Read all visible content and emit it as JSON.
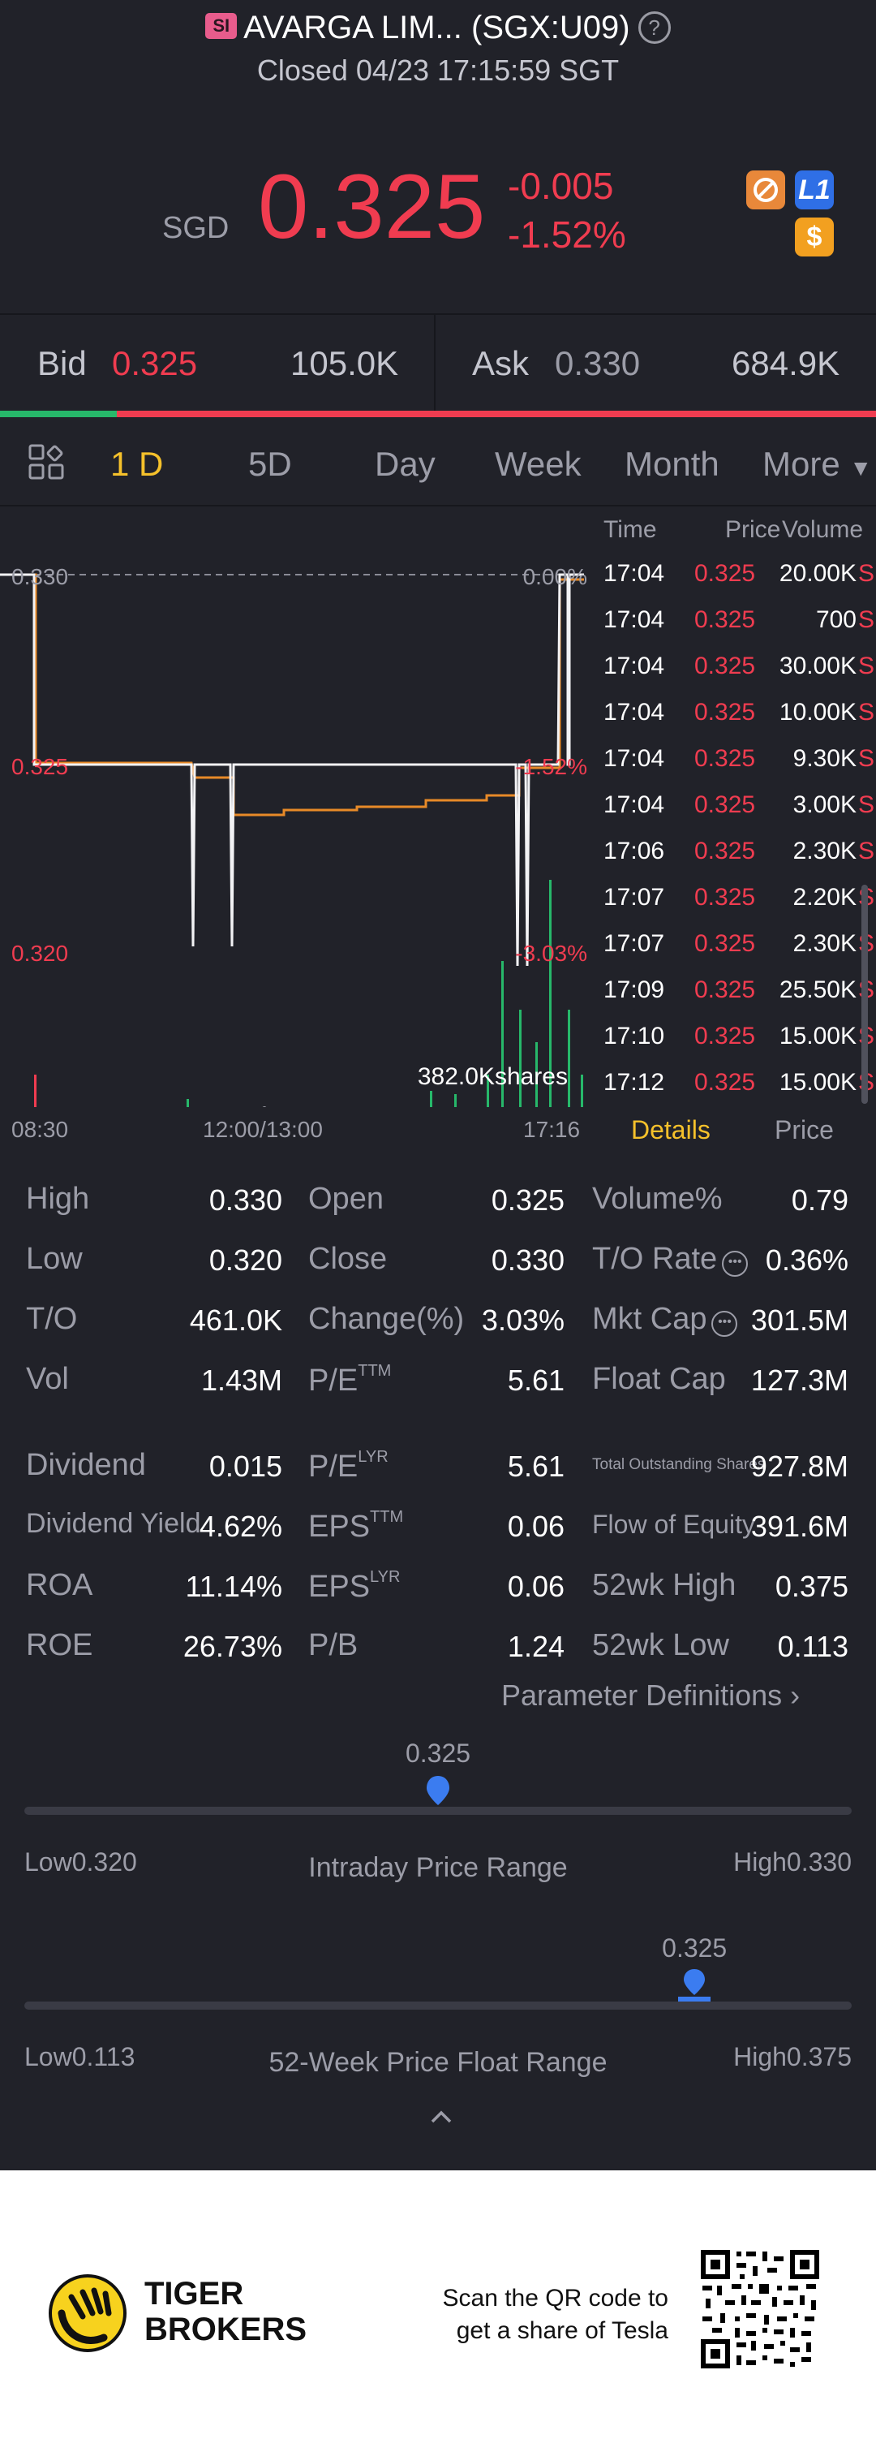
{
  "header": {
    "badge": "SI",
    "title": "AVARGA LIM... (SGX:U09)",
    "status": "Closed 04/23 17:15:59 SGT",
    "help_icon": "?"
  },
  "quote": {
    "currency": "SGD",
    "price": "0.325",
    "change": "-0.005",
    "change_pct": "-1.52%",
    "icons": [
      "badge-icon",
      "level1-icon",
      "dollar-icon"
    ],
    "l1_label": "L1",
    "dollar_label": "$"
  },
  "bidask": {
    "bid_label": "Bid",
    "bid_price": "0.325",
    "bid_size": "105.0K",
    "ask_label": "Ask",
    "ask_price": "0.330",
    "ask_size": "684.9K"
  },
  "periods": [
    "1 D",
    "5D",
    "Day",
    "Week",
    "Month",
    "More"
  ],
  "chart": {
    "y_labels": [
      "0.330",
      "0.325",
      "0.320"
    ],
    "pct_labels": [
      "0.00%",
      "-1.52%",
      "-3.03%"
    ],
    "x_labels": [
      "08:30",
      "12:00/13:00",
      "17:16"
    ],
    "volume_label": "382.0Kshares"
  },
  "trades": {
    "headers": [
      "Time",
      "Price",
      "Volume"
    ],
    "rows": [
      {
        "time": "17:04",
        "price": "0.325",
        "volume": "20.00K",
        "side": "S"
      },
      {
        "time": "17:04",
        "price": "0.325",
        "volume": "700",
        "side": "S"
      },
      {
        "time": "17:04",
        "price": "0.325",
        "volume": "30.00K",
        "side": "S"
      },
      {
        "time": "17:04",
        "price": "0.325",
        "volume": "10.00K",
        "side": "S"
      },
      {
        "time": "17:04",
        "price": "0.325",
        "volume": "9.30K",
        "side": "S"
      },
      {
        "time": "17:04",
        "price": "0.325",
        "volume": "3.00K",
        "side": "S"
      },
      {
        "time": "17:06",
        "price": "0.325",
        "volume": "2.30K",
        "side": "S"
      },
      {
        "time": "17:07",
        "price": "0.325",
        "volume": "2.20K",
        "side": "S"
      },
      {
        "time": "17:07",
        "price": "0.325",
        "volume": "2.30K",
        "side": "S"
      },
      {
        "time": "17:09",
        "price": "0.325",
        "volume": "25.50K",
        "side": "S"
      },
      {
        "time": "17:10",
        "price": "0.325",
        "volume": "15.00K",
        "side": "S"
      },
      {
        "time": "17:12",
        "price": "0.325",
        "volume": "15.00K",
        "side": "S"
      }
    ],
    "tab_details": "Details",
    "tab_price": "Price"
  },
  "stats": {
    "high_label": "High",
    "high": "0.330",
    "low_label": "Low",
    "low": "0.320",
    "to_label": "T/O",
    "to": "461.0K",
    "vol_label": "Vol",
    "vol": "1.43M",
    "open_label": "Open",
    "open": "0.325",
    "close_label": "Close",
    "close": "0.330",
    "change_label": "Change(%)",
    "change": "3.03%",
    "pe_label": "P/E",
    "pe_sup": "TTM",
    "pe": "5.61",
    "volpct_label": "Volume%",
    "volpct": "0.79",
    "torate_label": "T/O Rate",
    "torate": "0.36%",
    "mktcap_label": "Mkt Cap",
    "mktcap": "301.5M",
    "floatcap_label": "Float Cap",
    "floatcap": "127.3M",
    "dividend_label": "Dividend",
    "dividend": "0.015",
    "divyield_label": "Dividend Yield",
    "divyield": "4.62%",
    "roa_label": "ROA",
    "roa": "11.14%",
    "roe_label": "ROE",
    "roe": "26.73%",
    "pelyr_label": "P/E",
    "pelyr_sup": "LYR",
    "pelyr": "5.61",
    "epsttm_label": "EPS",
    "epsttm_sup": "TTM",
    "epsttm": "0.06",
    "epslyr_label": "EPS",
    "epslyr_sup": "LYR",
    "epslyr": "0.06",
    "pb_label": "P/B",
    "pb": "1.24",
    "totshares_label": "Total Outstanding Shares",
    "totshares": "927.8M",
    "flow_label": "Flow of Equity",
    "flow": "391.6M",
    "wkhigh_label": "52wk High",
    "wkhigh": "0.375",
    "wklow_label": "52wk Low",
    "wklow": "0.113",
    "param_link": "Parameter Definitions"
  },
  "intraday_range": {
    "current": "0.325",
    "low_label": "Low",
    "low": "0.320",
    "title": "Intraday Price Range",
    "high_label": "High",
    "high": "0.330",
    "position": 0.5
  },
  "week52_range": {
    "current": "0.325",
    "low_label": "Low",
    "low": "0.113",
    "title": "52-Week Price Float Range",
    "high_label": "High",
    "high": "0.375",
    "position": 0.81
  },
  "footer": {
    "brand_line1": "TIGER",
    "brand_line2": "BROKERS",
    "qr_line1": "Scan the QR code to",
    "qr_line2": "get a share of Tesla"
  },
  "colors": {
    "background": "#212229",
    "red": "#f03c50",
    "green": "#27b86a",
    "accent": "#f5c12b",
    "blue": "#3b7cf0"
  }
}
